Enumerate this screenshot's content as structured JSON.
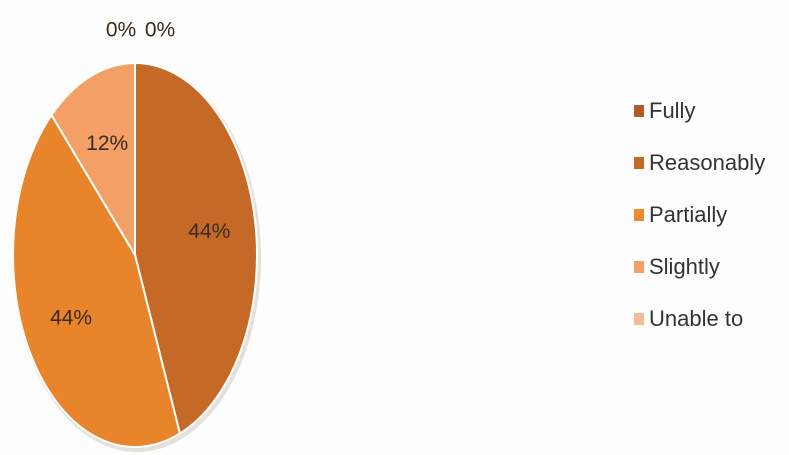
{
  "chart_data": {
    "type": "pie",
    "title": "",
    "legend_position": "right",
    "series": [
      {
        "labels": [
          "Fully",
          "Reasonably",
          "Partially",
          "Slightly",
          "Unable to"
        ],
        "values": [
          0,
          44,
          44,
          12,
          0
        ],
        "data_labels": [
          "0%",
          "44%",
          "44%",
          "12%",
          "0%"
        ],
        "colors": [
          "#b85f22",
          "#c46a26",
          "#e8842a",
          "#f2a066",
          "#f6bb94"
        ]
      }
    ]
  },
  "legend": {
    "items": [
      {
        "label": "Fully",
        "color": "#b35a22"
      },
      {
        "label": "Reasonably",
        "color": "#c46a26"
      },
      {
        "label": "Partially",
        "color": "#ee8b2c"
      },
      {
        "label": "Slightly",
        "color": "#f2a066"
      },
      {
        "label": "Unable to",
        "color": "#f6bb94"
      }
    ]
  }
}
